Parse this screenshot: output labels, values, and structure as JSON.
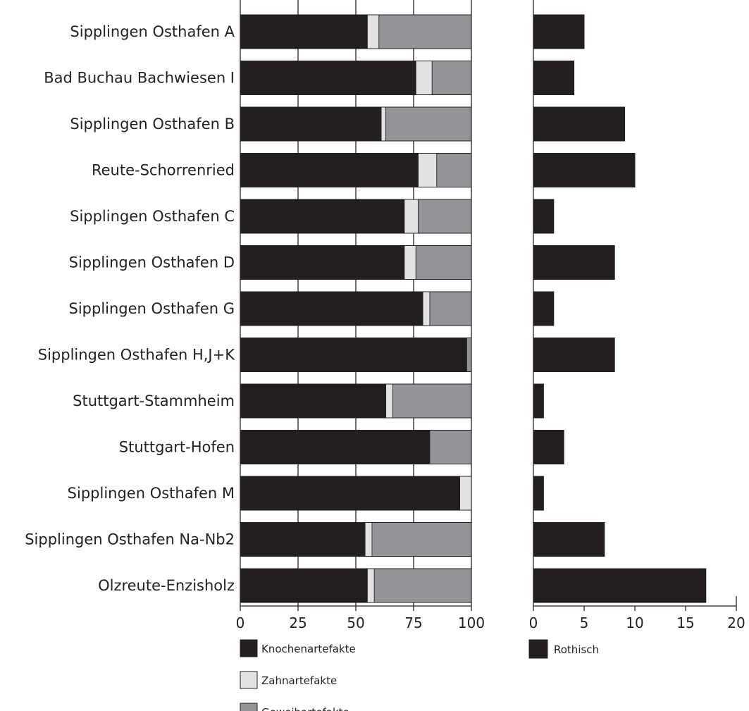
{
  "chart_data": [
    {
      "type": "bar",
      "orientation": "horizontal",
      "stacked": true,
      "categories": [
        "Sipplingen Osthafen A",
        "Bad Buchau Bachwiesen I",
        "Sipplingen Osthafen B",
        "Reute-Schorrenried",
        "Sipplingen Osthafen C",
        "Sipplingen Osthafen D",
        "Sipplingen Osthafen G",
        "Sipplingen Osthafen H,J+K",
        "Stuttgart-Stammheim",
        "Stuttgart-Hofen",
        "Sipplingen Osthafen M",
        "Sipplingen Osthafen Na-Nb2",
        "Olzreute-Enzisholz"
      ],
      "series": [
        {
          "name": "Knochenartefakte",
          "color": "#231f20",
          "values": [
            55,
            76,
            61,
            77,
            71,
            71,
            79,
            98,
            63,
            82,
            95,
            54,
            55
          ]
        },
        {
          "name": "Zahnartefakte",
          "color": "#e2e2e3",
          "values": [
            5,
            7,
            2,
            8,
            6,
            5,
            3,
            0,
            3,
            0,
            5,
            3,
            3
          ]
        },
        {
          "name": "Geweihartefakte",
          "color": "#929497",
          "values": [
            40,
            17,
            37,
            15,
            23,
            24,
            18,
            2,
            34,
            18,
            0,
            43,
            42
          ]
        }
      ],
      "xlim": [
        0,
        100
      ],
      "xticks": [
        0,
        25,
        50,
        75,
        100
      ],
      "grid": "vertical",
      "legend_position": "bottom"
    },
    {
      "type": "bar",
      "orientation": "horizontal",
      "series": [
        {
          "name": "Rothisch",
          "color": "#231f20",
          "values": [
            5,
            4,
            9,
            10,
            2,
            8,
            2,
            8,
            1,
            3,
            1,
            7,
            17
          ]
        }
      ],
      "xlim": [
        0,
        20
      ],
      "xticks": [
        0,
        5,
        10,
        15,
        20
      ],
      "legend_position": "bottom"
    }
  ]
}
